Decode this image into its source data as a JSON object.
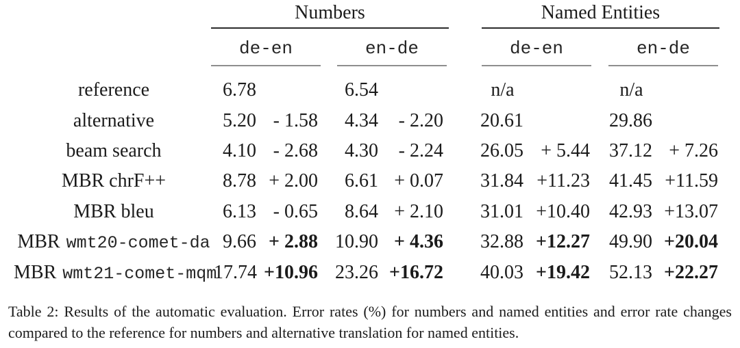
{
  "table": {
    "group_headers": [
      {
        "label": "Numbers"
      },
      {
        "label": "Named Entities"
      }
    ],
    "sub_headers": [
      "de-en",
      "en-de",
      "de-en",
      "en-de"
    ],
    "rows": [
      {
        "label": "reference",
        "cells": [
          "6.78",
          "",
          "6.54",
          "",
          "n/a",
          "",
          "n/a",
          ""
        ]
      },
      {
        "label": "alternative",
        "cells": [
          "5.20",
          "- 1.58",
          "4.34",
          "- 2.20",
          "20.61",
          "",
          "29.86",
          ""
        ]
      },
      {
        "label": "beam search",
        "cells": [
          "4.10",
          "- 2.68",
          "4.30",
          "- 2.24",
          "26.05",
          "+ 5.44",
          "37.12",
          "+ 7.26"
        ]
      },
      {
        "label": "MBR chrF++",
        "cells": [
          "8.78",
          "+ 2.00",
          "6.61",
          "+ 0.07",
          "31.84",
          "+11.23",
          "41.45",
          "+11.59"
        ]
      },
      {
        "label": "MBR bleu",
        "cells": [
          "6.13",
          "- 0.65",
          "8.64",
          "+ 2.10",
          "31.01",
          "+10.40",
          "42.93",
          "+13.07"
        ]
      },
      {
        "label": "MBR",
        "label_mono": "wmt20-comet-da",
        "bold_delta": true,
        "cells": [
          "9.66",
          "+ 2.88",
          "10.90",
          "+ 4.36",
          "32.88",
          "+12.27",
          "49.90",
          "+20.04"
        ]
      },
      {
        "label": "MBR",
        "label_mono": "wmt21-comet-mqm",
        "bold_delta": true,
        "cells": [
          "17.74",
          "+10.96",
          "23.26",
          "+16.72",
          "40.03",
          "+19.42",
          "52.13",
          "+22.27"
        ]
      }
    ]
  },
  "caption": "Table 2: Results of the automatic evaluation. Error rates (%) for numbers and named entities and error rate changes compared to the reference for numbers and alternative translation for named entities.",
  "colors": {
    "text": "#1b1b1b",
    "rule_heavy": "#2b2b2b",
    "rule_light": "#8d8d8d",
    "background": "#ffffff"
  }
}
